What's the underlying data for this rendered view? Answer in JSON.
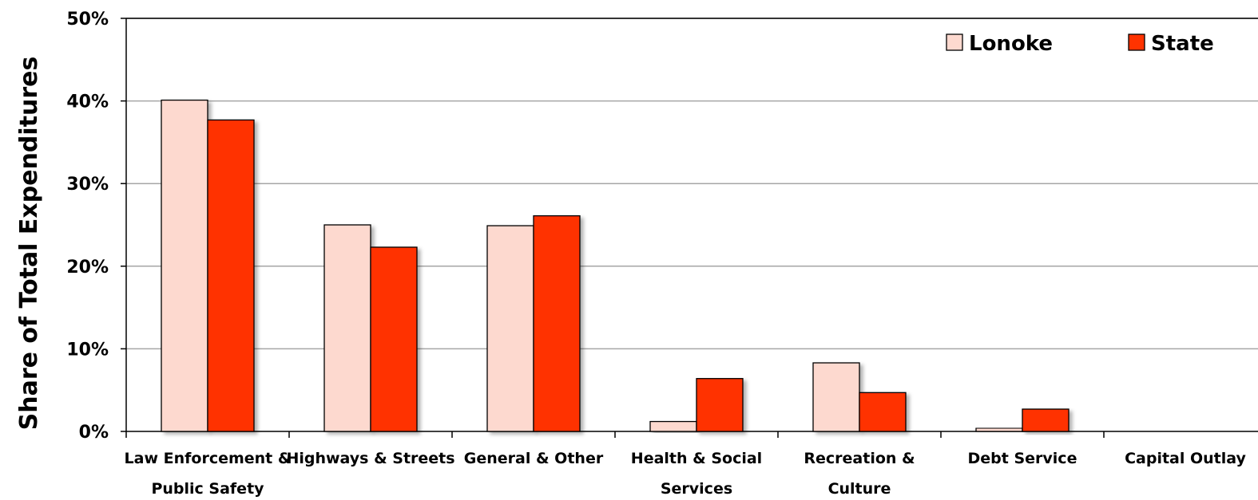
{
  "chart_data": {
    "type": "bar",
    "categories": [
      [
        "Law Enforcement &",
        "Public Safety"
      ],
      [
        "Highways & Streets"
      ],
      [
        "General & Other"
      ],
      [
        "Health & Social",
        "Services"
      ],
      [
        "Recreation &",
        "Culture"
      ],
      [
        "Debt Service"
      ],
      [
        "Capital Outlay"
      ]
    ],
    "series": [
      {
        "name": "Lonoke",
        "color": "#fdd9cf",
        "values": [
          40.1,
          25.0,
          24.9,
          1.2,
          8.3,
          0.4,
          0.0
        ]
      },
      {
        "name": "State",
        "color": "#ff3300",
        "values": [
          37.7,
          22.3,
          26.1,
          6.4,
          4.7,
          2.7,
          0.0
        ]
      }
    ],
    "ylabel": "Share of Total Expenditures",
    "ylim": [
      0,
      50
    ],
    "yticks": [
      0,
      10,
      20,
      30,
      40,
      50
    ],
    "ytick_format": "%",
    "grid": true,
    "legend_position": "top-right"
  }
}
